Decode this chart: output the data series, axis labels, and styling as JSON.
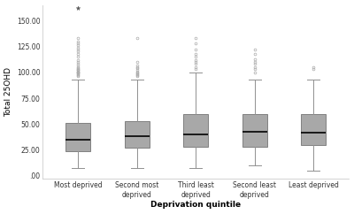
{
  "categories": [
    "Most deprived",
    "Second most\ndeprived",
    "Third least\ndeprived",
    "Second least\ndeprived",
    "Least deprived"
  ],
  "box_data": [
    {
      "q1": 24,
      "median": 35,
      "q3": 51,
      "whislo": 8,
      "whishi": 93,
      "fliers_high": [
        96,
        97,
        98,
        99,
        100,
        100,
        101,
        101,
        102,
        102,
        103,
        104,
        105,
        107,
        108,
        110,
        112,
        115,
        118,
        120,
        122,
        124,
        126,
        128,
        130,
        133
      ],
      "star_fliers": [
        162
      ]
    },
    {
      "q1": 27,
      "median": 38,
      "q3": 53,
      "whislo": 8,
      "whishi": 93,
      "fliers_high": [
        96,
        97,
        98,
        99,
        100,
        101,
        102,
        104,
        105,
        107,
        110,
        133
      ],
      "star_fliers": []
    },
    {
      "q1": 28,
      "median": 40,
      "q3": 60,
      "whislo": 8,
      "whishi": 100,
      "fliers_high": [
        103,
        105,
        108,
        110,
        112,
        115,
        118,
        122,
        128,
        133
      ],
      "star_fliers": []
    },
    {
      "q1": 28,
      "median": 43,
      "q3": 60,
      "whislo": 10,
      "whishi": 93,
      "fliers_high": [
        100,
        103,
        105,
        108,
        110,
        113,
        118,
        122
      ],
      "star_fliers": []
    },
    {
      "q1": 30,
      "median": 42,
      "q3": 60,
      "whislo": 5,
      "whishi": 93,
      "fliers_high": [
        103,
        105
      ],
      "star_fliers": []
    }
  ],
  "ylabel": "Total 25OHD",
  "xlabel": "Deprivation quintile",
  "ylim": [
    -3,
    165
  ],
  "yticks": [
    0,
    25,
    50,
    75,
    100,
    125,
    150
  ],
  "ytick_labels": [
    ".00",
    "25.00",
    "50.00",
    "75.00",
    "100.00",
    "125.00",
    "150.00"
  ],
  "box_color": "#a8a8a8",
  "box_edge_color": "#808080",
  "median_color": "#000000",
  "whisker_color": "#909090",
  "cap_color": "#909090",
  "flier_color": "#aaaaaa",
  "background_color": "#ffffff",
  "figure_background": "#ffffff",
  "spine_color": "#cccccc"
}
